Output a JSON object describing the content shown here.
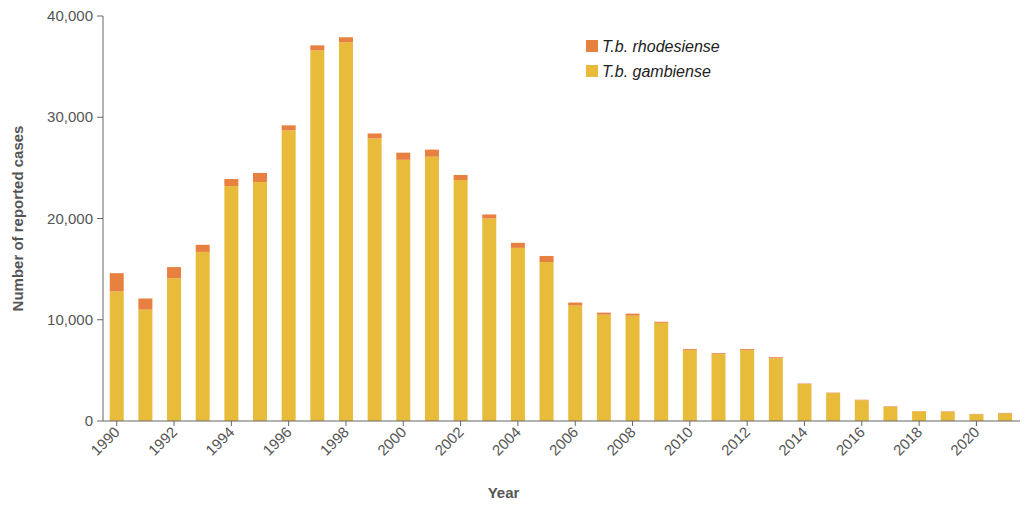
{
  "chart_data": {
    "type": "bar",
    "stacked": true,
    "x_label": "Year",
    "y_label": "Number of reported cases",
    "categories": [
      "1990",
      null,
      "1992",
      null,
      "1994",
      null,
      "1996",
      null,
      "1998",
      null,
      "2000",
      null,
      "2002",
      null,
      "2004",
      null,
      "2006",
      null,
      "2008",
      null,
      "2010",
      null,
      "2012",
      null,
      "2014",
      null,
      "2016",
      null,
      "2018",
      null,
      "2020",
      null
    ],
    "series": [
      {
        "name": "T.b. gambiense",
        "color": "#e8bc3a",
        "values": [
          12800,
          11000,
          14100,
          16700,
          23200,
          23600,
          28700,
          36600,
          37400,
          27900,
          25800,
          26100,
          23800,
          20000,
          17100,
          15700,
          11400,
          10500,
          10400,
          9700,
          7000,
          6600,
          7000,
          6200,
          3650,
          2750,
          2050,
          1400,
          950,
          900,
          660,
          750
        ]
      },
      {
        "name": "T.b. rhodesiense",
        "color": "#e8803f",
        "values": [
          1800,
          1100,
          1100,
          700,
          700,
          900,
          500,
          500,
          500,
          500,
          700,
          700,
          500,
          400,
          500,
          600,
          300,
          200,
          200,
          100,
          100,
          100,
          100,
          100,
          50,
          50,
          50,
          50,
          30,
          50,
          40,
          50
        ]
      }
    ],
    "ylim": [
      0,
      40000
    ],
    "yticks": [
      0,
      {
        "value": 10000,
        "label": "10,000"
      },
      {
        "value": 20000,
        "label": "20,000"
      },
      {
        "value": 30000,
        "label": "30,000"
      },
      {
        "value": 40000,
        "label": "40,000"
      }
    ],
    "grid": false,
    "legend": "upper right"
  }
}
